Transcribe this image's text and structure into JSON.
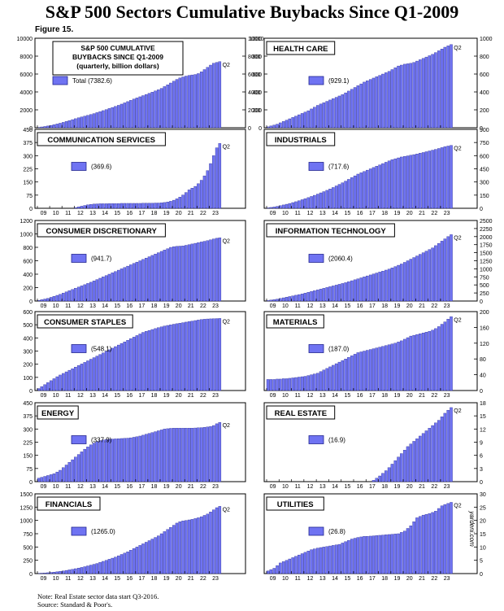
{
  "title": "S&P 500 Sectors Cumulative Buybacks Since Q1-2009",
  "figure_label": "Figure 15.",
  "note": "Note: Real Estate sector data start Q3-2016.",
  "source": "Source: Standard & Poor's.",
  "watermark": "yardeni.com",
  "colors": {
    "bar": "#6f73f2",
    "bar_edge": "#23268f",
    "text": "#000000"
  },
  "chart_data": [
    {
      "type": "bar",
      "title": "S&P 500 CUMULATIVE BUYBACKS SINCE Q1-2009 (quarterly, billion dollars)",
      "title_lines": [
        "S&P 500 CUMULATIVE",
        "BUYBACKS SINCE Q1-2009",
        "(quarterly, billion dollars)"
      ],
      "legend": "Total",
      "legend_value": "(7382.6)",
      "end_label": "Q2",
      "x_tick_labels": [
        "09",
        "10",
        "11",
        "12",
        "13",
        "14",
        "15",
        "16",
        "17",
        "18",
        "19",
        "20",
        "21",
        "22",
        "23"
      ],
      "ylim": [
        0,
        10000
      ],
      "yticks": [
        0,
        2000,
        4000,
        6000,
        8000,
        10000
      ],
      "y_axis": "both",
      "values": [
        40,
        90,
        140,
        195,
        265,
        340,
        420,
        505,
        600,
        700,
        800,
        905,
        1010,
        1110,
        1205,
        1300,
        1390,
        1485,
        1580,
        1690,
        1800,
        1915,
        2030,
        2150,
        2265,
        2385,
        2505,
        2640,
        2780,
        2920,
        3060,
        3200,
        3330,
        3460,
        3590,
        3720,
        3850,
        3980,
        4110,
        4240,
        4400,
        4600,
        4800,
        5000,
        5200,
        5400,
        5560,
        5680,
        5770,
        5850,
        5900,
        5950,
        6050,
        6250,
        6500,
        6750,
        7000,
        7200,
        7300,
        7382.6
      ]
    },
    {
      "type": "bar",
      "title": "HEALTH CARE",
      "legend_value": "(929.1)",
      "end_label": "Q2",
      "x_tick_labels": [
        "09",
        "10",
        "11",
        "12",
        "13",
        "14",
        "15",
        "16",
        "17",
        "18",
        "19",
        "20",
        "21",
        "22",
        "23"
      ],
      "ylim": [
        0,
        1000
      ],
      "yticks": [
        0,
        200,
        400,
        600,
        800,
        1000
      ],
      "y_axis": "both",
      "values": [
        10,
        20,
        30,
        40,
        55,
        70,
        85,
        100,
        115,
        130,
        145,
        160,
        175,
        190,
        210,
        230,
        250,
        265,
        280,
        295,
        310,
        325,
        340,
        355,
        370,
        390,
        410,
        430,
        450,
        470,
        490,
        510,
        525,
        540,
        555,
        570,
        585,
        600,
        615,
        630,
        650,
        670,
        690,
        700,
        710,
        715,
        720,
        730,
        745,
        760,
        775,
        790,
        805,
        820,
        840,
        860,
        880,
        900,
        915,
        929.1
      ]
    },
    {
      "type": "bar",
      "title": "COMMUNICATION SERVICES",
      "legend_value": "(369.6)",
      "end_label": "Q2",
      "x_tick_labels": [
        "09",
        "10",
        "11",
        "12",
        "13",
        "14",
        "15",
        "16",
        "17",
        "18",
        "19",
        "20",
        "21",
        "22",
        "23"
      ],
      "ylim": [
        0,
        450
      ],
      "yticks": [
        0,
        75,
        150,
        225,
        300,
        375,
        450
      ],
      "y_axis": "left",
      "values": [
        0,
        0,
        0,
        0,
        0,
        0,
        0,
        0,
        0,
        0,
        0,
        0,
        4,
        8,
        12,
        16,
        20,
        22,
        24,
        25,
        26,
        26,
        26,
        27,
        27,
        27,
        27,
        28,
        28,
        28,
        28,
        28,
        28,
        28,
        29,
        29,
        29,
        29,
        30,
        30,
        31,
        33,
        36,
        40,
        46,
        54,
        64,
        76,
        90,
        105,
        115,
        125,
        140,
        160,
        185,
        215,
        255,
        300,
        345,
        369.6
      ]
    },
    {
      "type": "bar",
      "title": "INDUSTRIALS",
      "legend_value": "(717.6)",
      "end_label": "Q2",
      "x_tick_labels": [
        "09",
        "10",
        "11",
        "12",
        "13",
        "14",
        "15",
        "16",
        "17",
        "18",
        "19",
        "20",
        "21",
        "22",
        "23"
      ],
      "ylim": [
        0,
        900
      ],
      "yticks": [
        0,
        150,
        300,
        450,
        600,
        750,
        900
      ],
      "y_axis": "right",
      "values": [
        5,
        10,
        15,
        22,
        30,
        38,
        46,
        55,
        65,
        75,
        86,
        98,
        110,
        122,
        135,
        148,
        162,
        176,
        190,
        205,
        220,
        237,
        255,
        273,
        291,
        310,
        330,
        350,
        370,
        390,
        405,
        420,
        435,
        450,
        465,
        480,
        495,
        510,
        525,
        540,
        555,
        565,
        575,
        585,
        592,
        598,
        605,
        612,
        620,
        628,
        636,
        645,
        654,
        663,
        672,
        682,
        692,
        702,
        710,
        717.6
      ]
    },
    {
      "type": "bar",
      "title": "CONSUMER DISCRETIONARY",
      "legend_value": "(941.7)",
      "end_label": "Q2",
      "x_tick_labels": [
        "09",
        "10",
        "11",
        "12",
        "13",
        "14",
        "15",
        "16",
        "17",
        "18",
        "19",
        "20",
        "21",
        "22",
        "23"
      ],
      "ylim": [
        0,
        1200
      ],
      "yticks": [
        0,
        200,
        400,
        600,
        800,
        1000,
        1200
      ],
      "y_axis": "left",
      "values": [
        10,
        20,
        30,
        40,
        55,
        70,
        85,
        100,
        118,
        136,
        154,
        172,
        190,
        208,
        226,
        244,
        262,
        280,
        300,
        320,
        340,
        360,
        380,
        400,
        420,
        440,
        460,
        480,
        500,
        520,
        540,
        560,
        580,
        600,
        620,
        640,
        660,
        680,
        700,
        720,
        740,
        760,
        780,
        800,
        810,
        815,
        818,
        822,
        830,
        840,
        850,
        860,
        870,
        880,
        890,
        900,
        912,
        925,
        935,
        941.7
      ]
    },
    {
      "type": "bar",
      "title": "INFORMATION TECHNOLOGY",
      "legend_value": "(2060.4)",
      "end_label": "Q2",
      "x_tick_labels": [
        "09",
        "10",
        "11",
        "12",
        "13",
        "14",
        "15",
        "16",
        "17",
        "18",
        "19",
        "20",
        "21",
        "22",
        "23"
      ],
      "ylim": [
        0,
        2500
      ],
      "yticks": [
        0,
        250,
        500,
        750,
        1000,
        1250,
        1500,
        1750,
        2000,
        2250,
        2500
      ],
      "y_axis": "right",
      "values": [
        15,
        30,
        45,
        60,
        80,
        100,
        120,
        140,
        160,
        180,
        200,
        220,
        245,
        270,
        295,
        320,
        345,
        370,
        395,
        420,
        445,
        470,
        495,
        520,
        545,
        570,
        600,
        630,
        660,
        690,
        720,
        750,
        780,
        810,
        840,
        870,
        900,
        930,
        960,
        990,
        1030,
        1070,
        1110,
        1150,
        1200,
        1250,
        1300,
        1350,
        1400,
        1450,
        1500,
        1550,
        1600,
        1650,
        1720,
        1790,
        1860,
        1930,
        2000,
        2060.4
      ]
    },
    {
      "type": "bar",
      "title": "CONSUMER STAPLES",
      "legend_value": "(548.1)",
      "end_label": "Q2",
      "x_tick_labels": [
        "09",
        "10",
        "11",
        "12",
        "13",
        "14",
        "15",
        "16",
        "17",
        "18",
        "19",
        "20",
        "21",
        "22",
        "23"
      ],
      "ylim": [
        0,
        600
      ],
      "yticks": [
        0,
        100,
        200,
        300,
        400,
        500,
        600
      ],
      "y_axis": "left",
      "values": [
        15,
        30,
        45,
        60,
        75,
        90,
        105,
        118,
        130,
        142,
        154,
        166,
        178,
        190,
        202,
        214,
        226,
        238,
        250,
        262,
        274,
        286,
        298,
        310,
        322,
        334,
        346,
        358,
        370,
        382,
        394,
        406,
        418,
        430,
        442,
        450,
        457,
        464,
        471,
        478,
        484,
        490,
        495,
        500,
        504,
        508,
        512,
        516,
        520,
        524,
        528,
        532,
        536,
        540,
        542,
        544,
        545,
        546,
        547,
        548.1
      ]
    },
    {
      "type": "bar",
      "title": "MATERIALS",
      "legend_value": "(187.0)",
      "end_label": "Q2",
      "x_tick_labels": [
        "09",
        "10",
        "11",
        "12",
        "13",
        "14",
        "15",
        "16",
        "17",
        "18",
        "19",
        "20",
        "21",
        "22",
        "23"
      ],
      "ylim": [
        0,
        200
      ],
      "yticks": [
        0,
        40,
        80,
        120,
        160,
        200
      ],
      "y_axis": "right",
      "values": [
        28,
        28,
        28,
        29,
        29,
        30,
        30,
        31,
        32,
        33,
        34,
        35,
        36,
        38,
        40,
        42,
        44,
        48,
        52,
        56,
        60,
        64,
        68,
        72,
        76,
        80,
        84,
        88,
        92,
        96,
        98,
        100,
        102,
        104,
        106,
        108,
        110,
        112,
        114,
        116,
        118,
        120,
        123,
        126,
        130,
        134,
        138,
        140,
        142,
        144,
        146,
        148,
        150,
        153,
        157,
        162,
        168,
        174,
        181,
        187
      ]
    },
    {
      "type": "bar",
      "title": "ENERGY",
      "legend_value": "(337.9)",
      "end_label": "Q2",
      "x_tick_labels": [
        "09",
        "10",
        "11",
        "12",
        "13",
        "14",
        "15",
        "16",
        "17",
        "18",
        "19",
        "20",
        "21",
        "22",
        "23"
      ],
      "ylim": [
        0,
        450
      ],
      "yticks": [
        0,
        75,
        150,
        225,
        300,
        375,
        450
      ],
      "y_axis": "left",
      "values": [
        20,
        25,
        30,
        35,
        40,
        45,
        55,
        65,
        80,
        95,
        110,
        125,
        140,
        155,
        170,
        185,
        198,
        210,
        220,
        228,
        234,
        238,
        240,
        242,
        243,
        244,
        245,
        246,
        247,
        248,
        250,
        253,
        256,
        260,
        265,
        270,
        275,
        280,
        285,
        290,
        295,
        300,
        302,
        304,
        305,
        305,
        305,
        305,
        305,
        305,
        305,
        306,
        307,
        308,
        310,
        312,
        315,
        320,
        330,
        337.9
      ]
    },
    {
      "type": "bar",
      "title": "REAL ESTATE",
      "legend_value": "(16.9)",
      "end_label": "Q2",
      "x_tick_labels": [
        "09",
        "10",
        "11",
        "12",
        "13",
        "14",
        "15",
        "16",
        "17",
        "18",
        "19",
        "20",
        "21",
        "22",
        "23"
      ],
      "ylim": [
        0,
        18
      ],
      "yticks": [
        0,
        3,
        6,
        9,
        12,
        15,
        18
      ],
      "y_axis": "right",
      "values": [
        0,
        0,
        0,
        0,
        0,
        0,
        0,
        0,
        0,
        0,
        0,
        0,
        0,
        0,
        0,
        0,
        0,
        0,
        0,
        0,
        0,
        0,
        0,
        0,
        0,
        0,
        0,
        0,
        0,
        0,
        0,
        0,
        0,
        0,
        0.3,
        0.8,
        1.3,
        1.9,
        2.5,
        3.2,
        4.0,
        4.8,
        5.6,
        6.4,
        7.2,
        8.0,
        8.6,
        9.2,
        9.8,
        10.4,
        11.0,
        11.6,
        12.2,
        12.8,
        13.4,
        14.0,
        14.8,
        15.6,
        16.3,
        16.9
      ]
    },
    {
      "type": "bar",
      "title": "FINANCIALS",
      "legend_value": "(1265.0)",
      "end_label": "Q2",
      "x_tick_labels": [
        "09",
        "10",
        "11",
        "12",
        "13",
        "14",
        "15",
        "16",
        "17",
        "18",
        "19",
        "20",
        "21",
        "22",
        "23"
      ],
      "ylim": [
        0,
        1500
      ],
      "yticks": [
        0,
        250,
        500,
        750,
        1000,
        1250,
        1500
      ],
      "y_axis": "left",
      "values": [
        5,
        8,
        12,
        16,
        22,
        28,
        35,
        42,
        50,
        60,
        70,
        80,
        92,
        104,
        116,
        130,
        145,
        160,
        175,
        190,
        210,
        230,
        250,
        270,
        290,
        310,
        335,
        360,
        385,
        410,
        440,
        470,
        500,
        530,
        560,
        590,
        620,
        650,
        680,
        710,
        750,
        790,
        830,
        870,
        910,
        950,
        975,
        990,
        1000,
        1010,
        1020,
        1035,
        1050,
        1070,
        1095,
        1120,
        1160,
        1200,
        1240,
        1265
      ]
    },
    {
      "type": "bar",
      "title": "UTILITIES",
      "legend_value": "(26.8)",
      "end_label": "Q2",
      "x_tick_labels": [
        "09",
        "10",
        "11",
        "12",
        "13",
        "14",
        "15",
        "16",
        "17",
        "18",
        "19",
        "20",
        "21",
        "22",
        "23"
      ],
      "ylim": [
        0,
        30
      ],
      "yticks": [
        0,
        5,
        10,
        15,
        20,
        25,
        30
      ],
      "y_axis": "right",
      "values": [
        1,
        1.5,
        2,
        3,
        4,
        4.5,
        5,
        5.5,
        6,
        6.5,
        7,
        7.5,
        8,
        8.5,
        9,
        9.3,
        9.6,
        9.8,
        10,
        10.2,
        10.4,
        10.6,
        10.8,
        11,
        11.5,
        12,
        12.5,
        13,
        13.3,
        13.6,
        13.8,
        14,
        14,
        14.1,
        14.2,
        14.3,
        14.4,
        14.5,
        14.6,
        14.7,
        14.8,
        14.9,
        15,
        15.5,
        16,
        17,
        18,
        19.5,
        21,
        21.5,
        22,
        22.3,
        22.6,
        23,
        23.5,
        24.5,
        25.5,
        26,
        26.4,
        26.8
      ]
    }
  ]
}
